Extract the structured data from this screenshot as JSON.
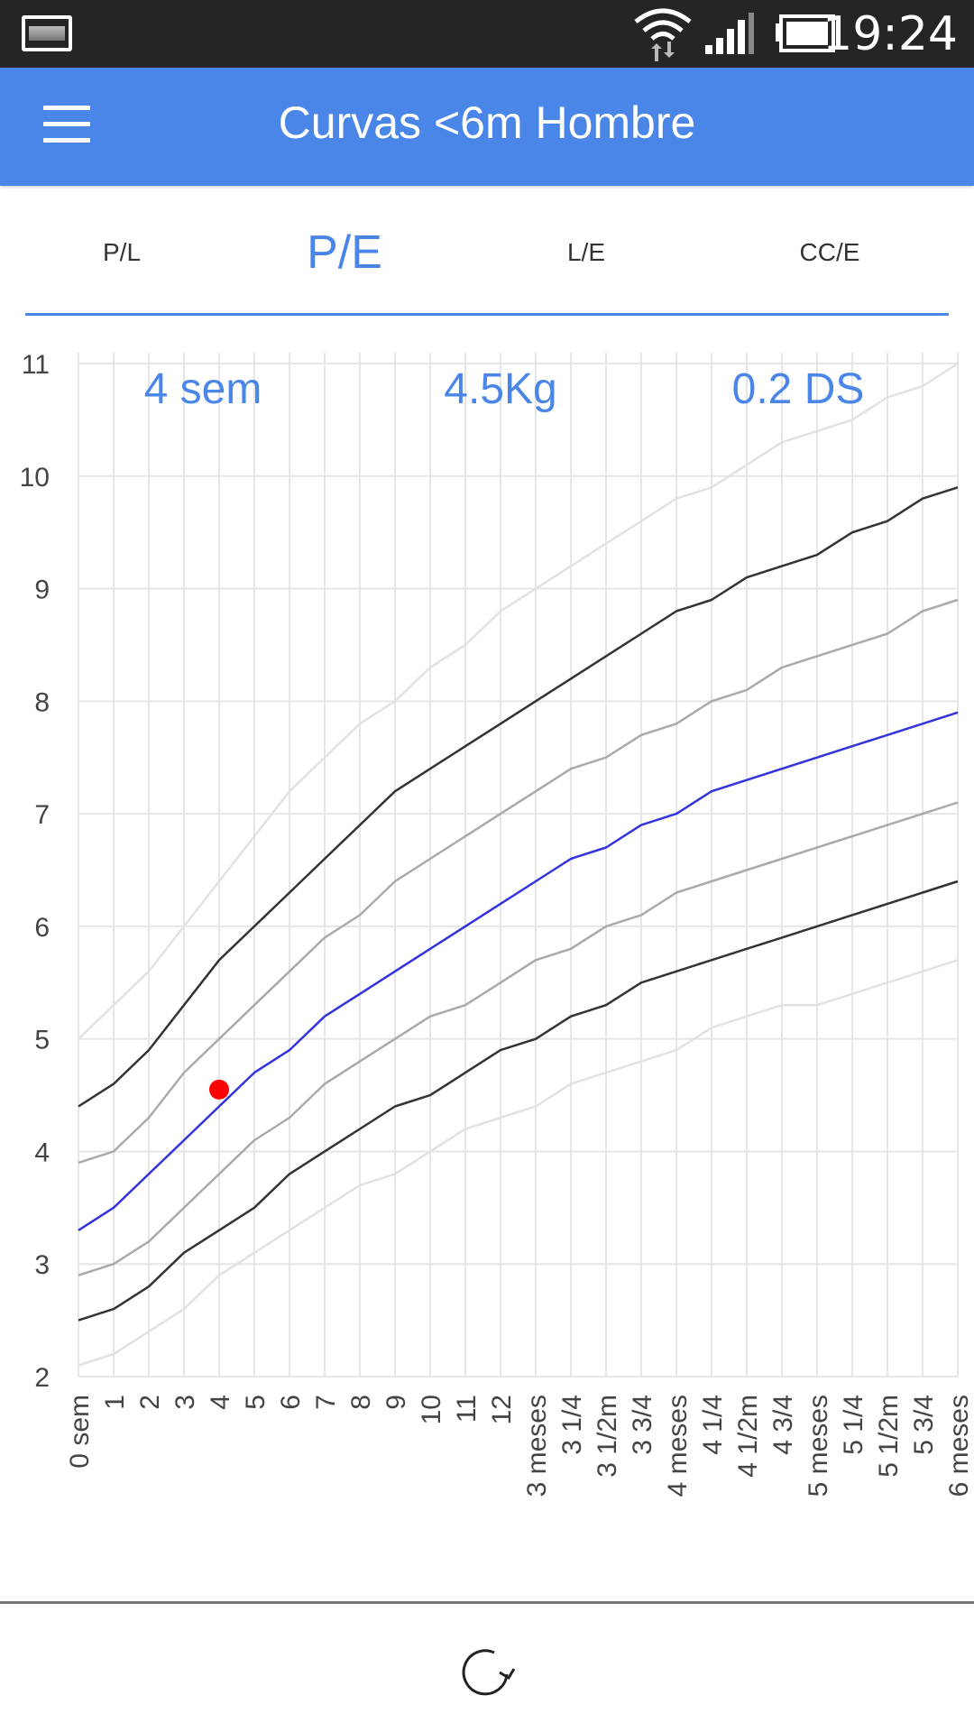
{
  "status_bar": {
    "time": "19:24",
    "icons": [
      "image-notification-icon",
      "wifi-icon",
      "signal-icon",
      "battery-icon"
    ]
  },
  "app_bar": {
    "title": "Curvas <6m Hombre",
    "menu_icon": "hamburger-menu-icon"
  },
  "tabs": [
    {
      "label": "P/L",
      "active": false
    },
    {
      "label": "P/E",
      "active": true
    },
    {
      "label": "L/E",
      "active": false
    },
    {
      "label": "CC/E",
      "active": false
    }
  ],
  "colors": {
    "accent": "#4a86e8",
    "marker": "#ff0000",
    "median": "#3333dd",
    "sd2": "#333333",
    "sd1": "#aaaaaa",
    "sd3": "#e2e2e2"
  },
  "chart_data": {
    "type": "line",
    "readout": {
      "age": "4 sem",
      "weight": "4.5Kg",
      "zscore": "0.2 DS"
    },
    "categories": [
      "0 sem",
      "1",
      "2",
      "3",
      "4",
      "5",
      "6",
      "7",
      "8",
      "9",
      "10",
      "11",
      "12",
      "3 meses",
      "3 1/4",
      "3 1/2m",
      "3 3/4",
      "4 meses",
      "4 1/4",
      "4 1/2m",
      "4 3/4",
      "5 meses",
      "5 1/4",
      "5 1/2m",
      "5 3/4",
      "6 meses"
    ],
    "y_ticks": [
      "2",
      "3",
      "4",
      "5",
      "6",
      "7",
      "8",
      "9",
      "10",
      "11"
    ],
    "ylim": [
      2,
      11
    ],
    "grid": true,
    "series": [
      {
        "role": "+3",
        "color": "#e2e2e2",
        "values": [
          5.0,
          5.3,
          5.6,
          6.0,
          6.4,
          6.8,
          7.2,
          7.5,
          7.8,
          8.0,
          8.3,
          8.5,
          8.8,
          9.0,
          9.2,
          9.4,
          9.6,
          9.8,
          9.9,
          10.1,
          10.3,
          10.4,
          10.5,
          10.7,
          10.8,
          11.0
        ]
      },
      {
        "role": "+2",
        "color": "#333333",
        "values": [
          4.4,
          4.6,
          4.9,
          5.3,
          5.7,
          6.0,
          6.3,
          6.6,
          6.9,
          7.2,
          7.4,
          7.6,
          7.8,
          8.0,
          8.2,
          8.4,
          8.6,
          8.8,
          8.9,
          9.1,
          9.2,
          9.3,
          9.5,
          9.6,
          9.8,
          9.9
        ]
      },
      {
        "role": "+1",
        "color": "#aaaaaa",
        "values": [
          3.9,
          4.0,
          4.3,
          4.7,
          5.0,
          5.3,
          5.6,
          5.9,
          6.1,
          6.4,
          6.6,
          6.8,
          7.0,
          7.2,
          7.4,
          7.5,
          7.7,
          7.8,
          8.0,
          8.1,
          8.3,
          8.4,
          8.5,
          8.6,
          8.8,
          8.9
        ]
      },
      {
        "role": "0",
        "color": "#3333dd",
        "values": [
          3.3,
          3.5,
          3.8,
          4.1,
          4.4,
          4.7,
          4.9,
          5.2,
          5.4,
          5.6,
          5.8,
          6.0,
          6.2,
          6.4,
          6.6,
          6.7,
          6.9,
          7.0,
          7.2,
          7.3,
          7.4,
          7.5,
          7.6,
          7.7,
          7.8,
          7.9
        ]
      },
      {
        "role": "-1",
        "color": "#aaaaaa",
        "values": [
          2.9,
          3.0,
          3.2,
          3.5,
          3.8,
          4.1,
          4.3,
          4.6,
          4.8,
          5.0,
          5.2,
          5.3,
          5.5,
          5.7,
          5.8,
          6.0,
          6.1,
          6.3,
          6.4,
          6.5,
          6.6,
          6.7,
          6.8,
          6.9,
          7.0,
          7.1
        ]
      },
      {
        "role": "-2",
        "color": "#333333",
        "values": [
          2.5,
          2.6,
          2.8,
          3.1,
          3.3,
          3.5,
          3.8,
          4.0,
          4.2,
          4.4,
          4.5,
          4.7,
          4.9,
          5.0,
          5.2,
          5.3,
          5.5,
          5.6,
          5.7,
          5.8,
          5.9,
          6.0,
          6.1,
          6.2,
          6.3,
          6.4
        ]
      },
      {
        "role": "-3",
        "color": "#e2e2e2",
        "values": [
          2.1,
          2.2,
          2.4,
          2.6,
          2.9,
          3.1,
          3.3,
          3.5,
          3.7,
          3.8,
          4.0,
          4.2,
          4.3,
          4.4,
          4.6,
          4.7,
          4.8,
          4.9,
          5.1,
          5.2,
          5.3,
          5.3,
          5.4,
          5.5,
          5.6,
          5.7
        ]
      }
    ],
    "point": {
      "x_index": 4,
      "y": 4.55
    }
  },
  "bottom_bar": {
    "refresh_icon": "refresh-icon"
  }
}
